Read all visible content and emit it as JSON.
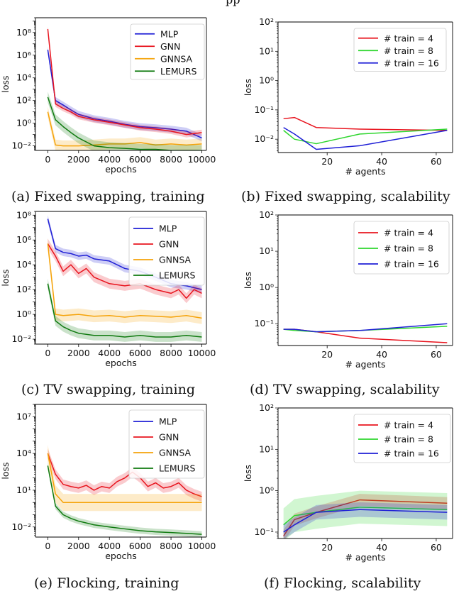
{
  "page": {
    "header_text": "pp",
    "captions": [
      "(a) Fixed swapping, training",
      "(b) Fixed swapping, scalability",
      "(c) TV swapping, training",
      "(d) TV swapping, scalability",
      "(e) Flocking, training",
      "(f) Flocking, scalability"
    ]
  },
  "colors": {
    "MLP": "#1f1fd6",
    "GNN": "#e8141e",
    "GNNSA": "#f5a30a",
    "LEMURS": "#0f7a0f",
    "train4": "#e8141e",
    "train8": "#2ed62e",
    "train16": "#1f1fd6"
  },
  "chart_data": [
    {
      "type": "line",
      "yscale": "log",
      "title": "(a) Fixed swapping, training",
      "xlabel": "epochs",
      "ylabel": "loss",
      "xlim": [
        -800,
        10300
      ],
      "ylim": [
        0.004,
        2000000000
      ],
      "xticks": [
        0,
        2000,
        4000,
        6000,
        8000,
        10000
      ],
      "xtick_labels": [
        "0",
        "2000",
        "4000",
        "6000",
        "8000",
        "10000"
      ],
      "yticks": [
        0.01,
        1,
        100,
        10000,
        1000000,
        100000000
      ],
      "ytick_labels": [
        "10⁻²",
        "10⁰",
        "10²",
        "10⁴",
        "10⁶",
        "10⁸"
      ],
      "legend": [
        "MLP",
        "GNN",
        "GNNSA",
        "LEMURS"
      ],
      "legend_loc": "top-right",
      "series": [
        {
          "name": "MLP",
          "x": [
            0,
            500,
            1000,
            1500,
            2000,
            3000,
            4000,
            5000,
            6000,
            7000,
            8000,
            9000,
            10000
          ],
          "values": [
            3000000,
            100,
            40,
            15,
            6,
            2.5,
            1.5,
            0.8,
            0.5,
            0.4,
            0.3,
            0.2,
            0.05
          ],
          "band": 2
        },
        {
          "name": "GNN",
          "x": [
            0,
            500,
            1000,
            1500,
            2000,
            3000,
            4000,
            5000,
            6000,
            7000,
            8000,
            9000,
            10000
          ],
          "values": [
            200000000,
            50,
            20,
            10,
            4,
            2,
            1.2,
            0.7,
            0.4,
            0.3,
            0.2,
            0.1,
            0.15
          ],
          "band": 1.8
        },
        {
          "name": "GNNSA",
          "x": [
            0,
            500,
            1000,
            2000,
            3000,
            4000,
            5000,
            6000,
            7000,
            8000,
            9000,
            10000
          ],
          "values": [
            10,
            0.012,
            0.01,
            0.01,
            0.012,
            0.015,
            0.015,
            0.02,
            0.012,
            0.015,
            0.012,
            0.015
          ],
          "band": 3
        },
        {
          "name": "LEMURS",
          "x": [
            0,
            500,
            1000,
            1500,
            2000,
            3000,
            4000,
            5000,
            6000,
            7000,
            8000,
            9000,
            10000
          ],
          "values": [
            200,
            2,
            0.5,
            0.15,
            0.05,
            0.01,
            0.007,
            0.006,
            0.005,
            0.005,
            0.004,
            0.004,
            0.004
          ],
          "band": 3
        }
      ]
    },
    {
      "type": "line",
      "yscale": "log",
      "title": "(b) Fixed swapping, scalability",
      "xlabel": "# agents",
      "ylabel": "loss",
      "xlim": [
        2,
        66
      ],
      "ylim": [
        0.0035,
        100
      ],
      "xticks": [
        20,
        40,
        60
      ],
      "xtick_labels": [
        "20",
        "40",
        "60"
      ],
      "yticks": [
        0.01,
        0.1,
        1,
        10,
        100
      ],
      "ytick_labels": [
        "10⁻²",
        "10⁻¹",
        "10⁰",
        "10¹",
        "10²"
      ],
      "legend": [
        "# train = 4",
        "# train = 8",
        "# train = 16"
      ],
      "legend_loc": "top-right",
      "series": [
        {
          "name": "# train = 4",
          "x": [
            4,
            8,
            16,
            32,
            64
          ],
          "values": [
            0.05,
            0.055,
            0.025,
            0.022,
            0.02
          ]
        },
        {
          "name": "# train = 8",
          "x": [
            4,
            8,
            16,
            32,
            64
          ],
          "values": [
            0.02,
            0.01,
            0.007,
            0.015,
            0.022
          ]
        },
        {
          "name": "# train = 16",
          "x": [
            4,
            8,
            16,
            32,
            64
          ],
          "values": [
            0.025,
            0.015,
            0.0045,
            0.006,
            0.02
          ]
        }
      ]
    },
    {
      "type": "line",
      "yscale": "log",
      "title": "(c) TV swapping, training",
      "xlabel": "epochs",
      "ylabel": "loss",
      "xlim": [
        -800,
        10300
      ],
      "ylim": [
        0.004,
        200000000
      ],
      "xticks": [
        0,
        2000,
        4000,
        6000,
        8000,
        10000
      ],
      "xtick_labels": [
        "0",
        "2000",
        "4000",
        "6000",
        "8000",
        "10000"
      ],
      "yticks": [
        0.01,
        1,
        100,
        10000,
        1000000,
        100000000
      ],
      "ytick_labels": [
        "10⁻²",
        "10⁰",
        "10²",
        "10⁴",
        "10⁶",
        "10⁸"
      ],
      "legend": [
        "MLP",
        "GNN",
        "GNNSA",
        "LEMURS"
      ],
      "legend_loc": "top-right",
      "series": [
        {
          "name": "MLP",
          "x": [
            0,
            500,
            1000,
            1500,
            2000,
            2500,
            3000,
            4000,
            5000,
            6000,
            7000,
            8000,
            9000,
            10000
          ],
          "values": [
            50000000,
            200000,
            100000,
            80000,
            50000,
            60000,
            30000,
            20000,
            5000,
            3000,
            1000,
            300,
            200,
            100
          ],
          "band": 2
        },
        {
          "name": "GNN",
          "x": [
            0,
            500,
            1000,
            1500,
            2000,
            2500,
            3000,
            4000,
            5000,
            6000,
            7000,
            8000,
            8500,
            9000,
            9500,
            10000
          ],
          "values": [
            500000,
            50000,
            3000,
            10000,
            2000,
            5000,
            1000,
            300,
            200,
            300,
            100,
            50,
            100,
            20,
            100,
            50
          ],
          "band": 2.5
        },
        {
          "name": "GNNSA",
          "x": [
            0,
            500,
            1000,
            2000,
            3000,
            4000,
            5000,
            6000,
            7000,
            8000,
            9000,
            10000
          ],
          "values": [
            500000,
            1,
            0.8,
            1,
            0.7,
            0.8,
            0.6,
            0.8,
            0.7,
            0.6,
            0.8,
            0.5
          ],
          "band": 3
        },
        {
          "name": "LEMURS",
          "x": [
            0,
            500,
            1000,
            1500,
            2000,
            3000,
            4000,
            5000,
            6000,
            7000,
            8000,
            9000,
            10000
          ],
          "values": [
            300,
            0.3,
            0.1,
            0.05,
            0.03,
            0.02,
            0.02,
            0.015,
            0.02,
            0.015,
            0.015,
            0.02,
            0.015
          ],
          "band": 2.5
        }
      ]
    },
    {
      "type": "line",
      "yscale": "log",
      "title": "(d) TV swapping, scalability",
      "xlabel": "# agents",
      "ylabel": "loss",
      "xlim": [
        2,
        66
      ],
      "ylim": [
        0.025,
        100
      ],
      "xticks": [
        20,
        40,
        60
      ],
      "xtick_labels": [
        "20",
        "40",
        "60"
      ],
      "yticks": [
        0.1,
        1,
        10,
        100
      ],
      "ytick_labels": [
        "10⁻¹",
        "10⁰",
        "10¹",
        "10²"
      ],
      "legend": [
        "# train = 4",
        "# train = 8",
        "# train = 16"
      ],
      "legend_loc": "top-right",
      "series": [
        {
          "name": "# train = 4",
          "x": [
            4,
            8,
            16,
            32,
            64
          ],
          "values": [
            0.07,
            0.07,
            0.06,
            0.04,
            0.03
          ]
        },
        {
          "name": "# train = 8",
          "x": [
            4,
            8,
            16,
            32,
            64
          ],
          "values": [
            0.07,
            0.065,
            0.06,
            0.065,
            0.085
          ]
        },
        {
          "name": "# train = 16",
          "x": [
            4,
            8,
            16,
            32,
            64
          ],
          "values": [
            0.07,
            0.07,
            0.06,
            0.065,
            0.1
          ]
        }
      ]
    },
    {
      "type": "line",
      "yscale": "log",
      "title": "(e) Flocking, training",
      "xlabel": "epochs",
      "ylabel": "loss",
      "xlim": [
        -800,
        10300
      ],
      "ylim": [
        0.0015,
        100000000
      ],
      "xticks": [
        0,
        2000,
        4000,
        6000,
        8000,
        10000
      ],
      "xtick_labels": [
        "0",
        "2000",
        "4000",
        "6000",
        "8000",
        "10000"
      ],
      "yticks": [
        0.01,
        10,
        10000,
        10000000
      ],
      "ytick_labels": [
        "10⁻²",
        "10¹",
        "10⁴",
        "10⁷"
      ],
      "legend": [
        "MLP",
        "GNN",
        "GNNSA",
        "LEMURS"
      ],
      "legend_loc": "top-right",
      "series": [
        {
          "name": "GNN",
          "x": [
            0,
            500,
            1000,
            1500,
            2000,
            2500,
            3000,
            3500,
            4000,
            4500,
            5000,
            5500,
            6000,
            6500,
            7000,
            7500,
            8000,
            8500,
            9000,
            9500,
            10000
          ],
          "values": [
            10000,
            200,
            30,
            20,
            15,
            25,
            10,
            20,
            15,
            50,
            100,
            300,
            100,
            20,
            40,
            15,
            20,
            40,
            10,
            5,
            3
          ],
          "band": 2.5
        },
        {
          "name": "GNNSA",
          "x": [
            0,
            500,
            1000,
            2000,
            3000,
            4000,
            5000,
            6000,
            7000,
            8000,
            9000,
            10000
          ],
          "values": [
            10000,
            5,
            1,
            1,
            1,
            1,
            1,
            1,
            1,
            1,
            1,
            1
          ],
          "band": 5
        },
        {
          "name": "LEMURS",
          "x": [
            0,
            500,
            1000,
            1500,
            2000,
            3000,
            4000,
            5000,
            6000,
            7000,
            8000,
            9000,
            10000
          ],
          "values": [
            1000,
            0.5,
            0.1,
            0.05,
            0.03,
            0.015,
            0.01,
            0.007,
            0.005,
            0.004,
            0.0035,
            0.003,
            0.0025
          ],
          "band": 1.8
        }
      ]
    },
    {
      "type": "line",
      "yscale": "log",
      "title": "(f) Flocking, scalability",
      "xlabel": "# agents",
      "ylabel": "loss",
      "xlim": [
        2,
        66
      ],
      "ylim": [
        0.07,
        100
      ],
      "xticks": [
        20,
        40,
        60
      ],
      "xtick_labels": [
        "20",
        "40",
        "60"
      ],
      "yticks": [
        0.1,
        1,
        10,
        100
      ],
      "ytick_labels": [
        "10⁻¹",
        "10⁰",
        "10¹",
        "10²"
      ],
      "legend": [
        "# train = 4",
        "# train = 8",
        "# train = 16"
      ],
      "legend_loc": "top-right",
      "series": [
        {
          "name": "# train = 4",
          "x": [
            4,
            8,
            16,
            32,
            64
          ],
          "values": [
            0.08,
            0.2,
            0.3,
            0.6,
            0.5
          ],
          "band": 1.4
        },
        {
          "name": "# train = 8",
          "x": [
            4,
            8,
            16,
            32,
            64
          ],
          "values": [
            0.15,
            0.25,
            0.3,
            0.4,
            0.35
          ],
          "band": 2.5
        },
        {
          "name": "# train = 16",
          "x": [
            4,
            8,
            16,
            32,
            64
          ],
          "values": [
            0.1,
            0.15,
            0.3,
            0.35,
            0.3
          ],
          "band": 1.5
        }
      ]
    }
  ]
}
